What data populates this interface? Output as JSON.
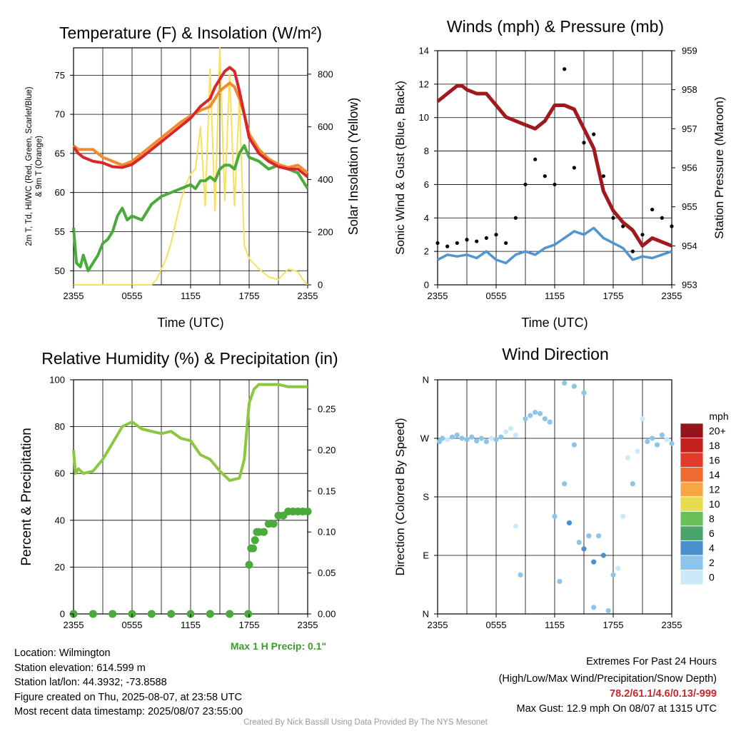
{
  "panels": {
    "temp": {
      "title": "Temperature (F) & Insolation (W/m²)",
      "ylabel_line1": "2m T, Td, HI/WC (Red, Green, Scarlet/Blue)",
      "ylabel_line2": "& 9m T (Orange)",
      "y2label": "Solar Insolation (Yellow)",
      "xlabel": "Time (UTC)"
    },
    "wind": {
      "title": "Winds (mph) & Pressure (mb)",
      "ylabel": "Sonic Wind & Gust (Blue, Black)",
      "y2label": "Station Pressure (Maroon)",
      "xlabel": "Time (UTC)"
    },
    "rh": {
      "title": "Relative Humidity (%) & Precipitation (in)",
      "ylabel": "Percent & Precipitation",
      "max_precip": "Max 1 H Precip: 0.1\""
    },
    "wdir": {
      "title": "Wind Direction",
      "ylabel": "Direction (Colored By Speed)",
      "legend_title": "mph"
    }
  },
  "station_info": {
    "location": "Location: Wilmington",
    "elevation": "Station elevation: 614.599 m",
    "latlon": "Station lat/lon: 44.3932; -73.8588",
    "created": "Figure created on Thu, 2025-08-07, at 23:58 UTC",
    "recent": "Most recent data timestamp: 2025/08/07 23:55:00"
  },
  "extremes": {
    "heading": "Extremes For Past 24 Hours",
    "subheading": "(High/Low/Max Wind/Precipitation/Snow Depth)",
    "values": "78.2/61.1/4.6/0.13/-999",
    "max_gust": "Max Gust: 12.9 mph On 08/07 at 1315 UTC"
  },
  "footer": "Created By Nick Bassill Using Data Provided By The NYS Mesonet",
  "colors": {
    "temp": "#d7272b",
    "dewpoint": "#4aaa3b",
    "temp9m": "#f28a2e",
    "solar": "#f8e05c",
    "wind": "#4f95d2",
    "gust": "#000000",
    "pressure": "#a0191d",
    "rh": "#8dc63f",
    "precip": "#4aaa3b"
  },
  "chart_data": [
    {
      "type": "line",
      "id": "temp",
      "title": "Temperature (F) & Insolation (W/m²)",
      "xlabel": "Time (UTC)",
      "x_ticks": [
        "2355",
        "0555",
        "1155",
        "1755",
        "2355"
      ],
      "xlim_hours": [
        0,
        24
      ],
      "ylim": [
        48.2,
        78.5
      ],
      "yticks": [
        50,
        55,
        60,
        65,
        70,
        75
      ],
      "y2lim": [
        0,
        900
      ],
      "y2ticks": [
        0,
        200,
        400,
        600,
        800
      ],
      "series": [
        {
          "name": "2m T",
          "color": "#d7272b",
          "x": [
            0,
            0.5,
            1,
            2,
            3,
            4,
            5,
            6,
            7,
            8,
            9,
            10,
            11,
            12,
            13,
            14,
            14.5,
            15,
            15.5,
            16,
            16.5,
            17,
            17.5,
            18,
            19,
            20,
            21,
            22,
            23,
            24
          ],
          "values": [
            65.8,
            65.0,
            64.5,
            64.0,
            63.8,
            63.3,
            63.2,
            63.6,
            64.5,
            65.5,
            66.5,
            67.5,
            68.5,
            69.5,
            71.0,
            72.0,
            73.5,
            74.5,
            75.5,
            76.0,
            75.5,
            73.0,
            70.0,
            67.0,
            65.0,
            64.0,
            63.3,
            63.0,
            63.0,
            62.0
          ]
        },
        {
          "name": "9m T",
          "color": "#f28a2e",
          "x": [
            0,
            0.5,
            1,
            2,
            3,
            4,
            5,
            6,
            7,
            8,
            9,
            10,
            11,
            12,
            13,
            14,
            14.5,
            15,
            15.5,
            16,
            16.5,
            17,
            17.5,
            18,
            19,
            20,
            21,
            22,
            23,
            24
          ],
          "values": [
            66.0,
            65.5,
            65.5,
            65.5,
            64.5,
            64.0,
            63.5,
            64.0,
            65.0,
            66.0,
            67.0,
            68.0,
            69.0,
            69.8,
            70.5,
            71.0,
            72.0,
            73.0,
            73.5,
            74.0,
            73.5,
            72.0,
            70.0,
            67.5,
            65.5,
            64.3,
            63.6,
            63.2,
            63.5,
            62.5
          ]
        },
        {
          "name": "2m Td",
          "color": "#4aaa3b",
          "x": [
            0,
            0.3,
            0.7,
            1,
            1.5,
            2,
            2.5,
            3,
            3.5,
            4,
            4.5,
            5,
            5.5,
            6,
            7,
            8,
            9,
            10,
            11,
            12,
            12.5,
            13,
            13.5,
            14,
            14.5,
            15,
            15.5,
            16,
            16.5,
            17,
            17.5,
            18,
            19,
            20,
            21,
            22,
            23,
            24
          ],
          "values": [
            55.5,
            51.0,
            50.5,
            52.0,
            50.0,
            51.0,
            52.0,
            53.5,
            54.0,
            55.0,
            57.0,
            58.0,
            56.5,
            57.0,
            56.5,
            58.5,
            59.5,
            60.0,
            60.5,
            61.0,
            60.5,
            61.5,
            61.5,
            62.0,
            61.5,
            63.0,
            63.5,
            63.5,
            63.0,
            65.0,
            66.0,
            64.5,
            64.0,
            63.0,
            63.5,
            63.0,
            62.5,
            60.5
          ]
        },
        {
          "name": "Solar Insolation",
          "axis": "y2",
          "color": "#f8e05c",
          "x": [
            0,
            8,
            8.5,
            9,
            9.5,
            10,
            10.5,
            11,
            11.5,
            12,
            12.5,
            13,
            13.5,
            14,
            14.5,
            15,
            15.5,
            16,
            16.5,
            17,
            17.5,
            18,
            18.5,
            19,
            20,
            21,
            22,
            23,
            23.5,
            24
          ],
          "values": [
            0,
            0,
            20,
            60,
            100,
            160,
            240,
            320,
            380,
            420,
            440,
            600,
            300,
            820,
            280,
            900,
            320,
            800,
            300,
            700,
            150,
            100,
            80,
            60,
            30,
            20,
            60,
            50,
            20,
            0
          ]
        }
      ]
    },
    {
      "type": "line",
      "id": "wind",
      "title": "Winds (mph) & Pressure (mb)",
      "xlabel": "Time (UTC)",
      "x_ticks": [
        "2355",
        "0555",
        "1155",
        "1755",
        "2355"
      ],
      "xlim_hours": [
        0,
        24
      ],
      "ylim": [
        0,
        14
      ],
      "yticks": [
        0,
        2,
        4,
        6,
        8,
        10,
        12,
        14
      ],
      "y2lim": [
        953,
        959
      ],
      "y2ticks": [
        953,
        954,
        955,
        956,
        957,
        958,
        959
      ],
      "series": [
        {
          "name": "Sonic Wind",
          "color": "#4f95d2",
          "x": [
            0,
            1,
            2,
            3,
            4,
            5,
            6,
            7,
            8,
            9,
            10,
            11,
            12,
            13,
            14,
            15,
            16,
            17,
            18,
            19,
            20,
            21,
            22,
            23,
            24
          ],
          "values": [
            1.5,
            1.8,
            1.7,
            1.8,
            1.6,
            2.0,
            1.5,
            1.3,
            1.8,
            2.0,
            1.8,
            2.2,
            2.4,
            2.8,
            3.2,
            3.0,
            3.4,
            2.8,
            2.5,
            2.2,
            1.5,
            1.7,
            1.6,
            1.8,
            2.0
          ]
        },
        {
          "name": "Gust",
          "color": "#000000",
          "style": "points",
          "x": [
            0,
            1,
            2,
            3,
            4,
            5,
            6,
            7,
            8,
            9,
            10,
            11,
            12,
            13,
            14,
            15,
            16,
            17,
            18,
            19,
            20,
            21,
            22,
            23,
            24
          ],
          "values": [
            2.5,
            2.3,
            2.5,
            2.7,
            2.6,
            2.8,
            3.0,
            2.5,
            4.0,
            6.0,
            7.5,
            6.5,
            6.0,
            12.9,
            7.0,
            8.5,
            9.0,
            6.5,
            4.0,
            3.5,
            2.0,
            3.0,
            4.5,
            4.0,
            3.5
          ]
        },
        {
          "name": "Station Pressure",
          "axis": "y2",
          "color": "#a0191d",
          "x": [
            0,
            1,
            2,
            2.5,
            3,
            4,
            5,
            6,
            7,
            8,
            9,
            10,
            11,
            12,
            13,
            14,
            15,
            16,
            17,
            18,
            19,
            20,
            21,
            22,
            23,
            24
          ],
          "values": [
            957.7,
            957.9,
            958.1,
            958.1,
            958.0,
            957.9,
            957.9,
            957.6,
            957.3,
            957.2,
            957.1,
            957.0,
            957.2,
            957.6,
            957.6,
            957.5,
            957.0,
            956.5,
            955.4,
            954.9,
            954.6,
            954.4,
            954.0,
            954.2,
            954.1,
            954.0
          ]
        }
      ]
    },
    {
      "type": "line",
      "id": "rh",
      "title": "Relative Humidity (%) & Precipitation (in)",
      "x_ticks": [
        "2355",
        "0555",
        "1155",
        "1755",
        "2355"
      ],
      "xlim_hours": [
        0,
        24
      ],
      "ylim": [
        0,
        100
      ],
      "yticks": [
        0,
        20,
        40,
        60,
        80,
        100
      ],
      "y2lim": [
        0,
        0.2857
      ],
      "y2ticks": [
        0.0,
        0.05,
        0.1,
        0.15,
        0.2,
        0.25
      ],
      "series": [
        {
          "name": "Relative Humidity",
          "color": "#8dc63f",
          "x": [
            0,
            0.2,
            0.5,
            1,
            2,
            3,
            4,
            5,
            6,
            7,
            8,
            9,
            10,
            11,
            12,
            13,
            14,
            15,
            16,
            17,
            17.5,
            18,
            18.5,
            19,
            20,
            21,
            22,
            23,
            24
          ],
          "values": [
            70,
            60,
            62,
            60,
            61,
            66,
            73,
            80,
            82,
            79,
            78,
            77,
            78,
            75,
            74,
            68,
            66,
            61,
            57,
            58,
            66,
            90,
            96,
            98,
            98,
            98,
            97,
            97,
            97
          ]
        },
        {
          "name": "Precipitation",
          "axis": "y2",
          "color": "#4aaa3b",
          "style": "points",
          "x": [
            0,
            2,
            4,
            6,
            8,
            10,
            12,
            14,
            16,
            17.9,
            18.0,
            18.2,
            18.4,
            18.6,
            18.8,
            19.0,
            19.5,
            20.0,
            20.5,
            21,
            21.5,
            22,
            22.5,
            23,
            23.5,
            24
          ],
          "values": [
            0,
            0,
            0,
            0,
            0,
            0,
            0,
            0,
            0,
            0,
            0.06,
            0.08,
            0.08,
            0.09,
            0.1,
            0.1,
            0.1,
            0.11,
            0.11,
            0.12,
            0.12,
            0.125,
            0.125,
            0.125,
            0.125,
            0.125
          ]
        }
      ]
    },
    {
      "type": "scatter",
      "id": "wdir",
      "title": "Wind Direction",
      "x_ticks": [
        "2355",
        "0555",
        "1155",
        "1755",
        "2355"
      ],
      "xlim_hours": [
        0,
        24
      ],
      "ylim": [
        0,
        360
      ],
      "y_ticks": [
        "N",
        "E",
        "S",
        "W",
        "N"
      ],
      "y_tick_values": [
        0,
        90,
        180,
        270,
        360
      ],
      "colorbar": {
        "title": "mph",
        "labels": [
          "0",
          "2",
          "4",
          "6",
          "8",
          "10",
          "12",
          "14",
          "16",
          "18",
          "20+"
        ],
        "colors": [
          "#cde9f7",
          "#8cc5ea",
          "#4b90cc",
          "#4aa56a",
          "#6bbf59",
          "#e6dc4f",
          "#f9a646",
          "#ef6930",
          "#e33a2a",
          "#c3201e",
          "#96151a"
        ]
      },
      "series": [
        {
          "name": "Direction",
          "style": "points",
          "x": [
            0.2,
            0.5,
            1,
            1.5,
            2,
            2.5,
            3,
            3.5,
            4,
            4.5,
            5,
            5.5,
            6,
            6.5,
            7,
            7.5,
            8,
            8,
            8.5,
            9,
            9.5,
            10,
            10.5,
            11,
            11.5,
            12,
            12.5,
            13,
            13,
            13.5,
            14,
            14,
            14.5,
            15,
            15,
            15.5,
            16,
            16,
            16.5,
            17,
            17.5,
            18,
            18.5,
            19,
            19.5,
            20,
            20.5,
            21,
            21.5,
            22,
            22.5,
            23,
            23.5,
            24
          ],
          "values": [
            265,
            270,
            268,
            272,
            275,
            270,
            268,
            272,
            266,
            270,
            265,
            270,
            268,
            272,
            280,
            285,
            275,
            135,
            60,
            300,
            305,
            310,
            308,
            300,
            295,
            150,
            50,
            200,
            355,
            140,
            350,
            260,
            110,
            340,
            100,
            120,
            80,
            10,
            120,
            90,
            5,
            60,
            70,
            150,
            240,
            200,
            250,
            300,
            265,
            270,
            260,
            275,
            268,
            262
          ],
          "speed": [
            2,
            2,
            1,
            2,
            3,
            2,
            2,
            2,
            3,
            2,
            2,
            1,
            2,
            2,
            1,
            1,
            1,
            1,
            2,
            2,
            2,
            3,
            3,
            2,
            2,
            3,
            3,
            3,
            2,
            4,
            2,
            3,
            3,
            2,
            4,
            3,
            4,
            3,
            3,
            4,
            2,
            2,
            1,
            1,
            1,
            2,
            1,
            1,
            2,
            2,
            3,
            2,
            1,
            2
          ]
        }
      ]
    }
  ]
}
